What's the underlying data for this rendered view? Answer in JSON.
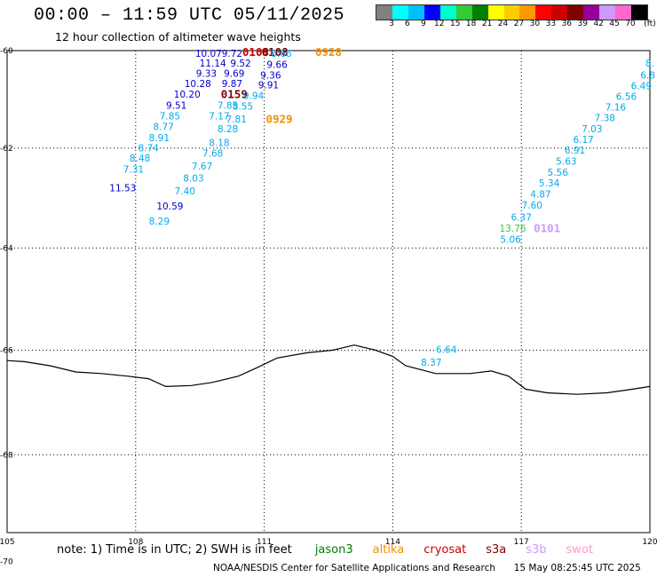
{
  "header": {
    "title": "00:00 – 11:59 UTC 05/11/2025",
    "subtitle": "12 hour collection of altimeter wave heights"
  },
  "colorbar": {
    "colors": [
      "#808080",
      "#00ffff",
      "#00bfff",
      "#0000ff",
      "#00ffcc",
      "#33cc33",
      "#008000",
      "#ffff00",
      "#ffcc00",
      "#ff9900",
      "#ff0000",
      "#cc0000",
      "#800000",
      "#990099",
      "#cc99ff",
      "#ff66cc",
      "#000000"
    ],
    "labels": [
      "3",
      "6",
      "9",
      "12",
      "15",
      "18",
      "21",
      "24",
      "27",
      "30",
      "33",
      "36",
      "39",
      "42",
      "45",
      "70"
    ],
    "unit": "(ft)"
  },
  "map": {
    "lon_range": [
      105,
      120
    ],
    "lat_range": [
      -60,
      -70
    ],
    "lon_ticks": [
      "105",
      "108",
      "111",
      "114",
      "117",
      "120"
    ],
    "lat_ticks": [
      "-60",
      "-62",
      "-64",
      "-66",
      "-68",
      "-70"
    ],
    "grid": true,
    "coastline": [
      [
        105.0,
        -66.2
      ],
      [
        105.4,
        -66.22
      ],
      [
        106.0,
        -66.3
      ],
      [
        106.6,
        -66.42
      ],
      [
        107.2,
        -66.45
      ],
      [
        107.8,
        -66.5
      ],
      [
        108.3,
        -66.55
      ],
      [
        108.7,
        -66.7
      ],
      [
        109.3,
        -66.68
      ],
      [
        109.8,
        -66.62
      ],
      [
        110.4,
        -66.5
      ],
      [
        110.8,
        -66.35
      ],
      [
        111.3,
        -66.15
      ],
      [
        112.0,
        -66.05
      ],
      [
        112.6,
        -66.0
      ],
      [
        113.1,
        -65.9
      ],
      [
        113.6,
        -66.0
      ],
      [
        114.0,
        -66.12
      ],
      [
        114.3,
        -66.3
      ],
      [
        115.0,
        -66.45
      ],
      [
        115.8,
        -66.45
      ],
      [
        116.3,
        -66.4
      ],
      [
        116.7,
        -66.5
      ],
      [
        117.1,
        -66.75
      ],
      [
        117.6,
        -66.82
      ],
      [
        118.3,
        -66.85
      ],
      [
        119.0,
        -66.82
      ],
      [
        119.6,
        -66.75
      ],
      [
        120.0,
        -66.7
      ]
    ],
    "labels": [
      {
        "t": "10.07",
        "lon": 109.7,
        "lat": -60.07,
        "c": "#0000cc"
      },
      {
        "t": "9.72",
        "lon": 110.25,
        "lat": -60.07,
        "c": "#0000cc"
      },
      {
        "t": "0108",
        "lon": 110.8,
        "lat": -60.05,
        "c": "#cc0000"
      },
      {
        "t": "0108",
        "lon": 111.25,
        "lat": -60.05,
        "c": "#800000"
      },
      {
        "t": "8.66",
        "lon": 111.4,
        "lat": -60.07,
        "c": "#00aaee"
      },
      {
        "t": "0928",
        "lon": 112.5,
        "lat": -60.05,
        "c": "#f09000"
      },
      {
        "t": "11.14",
        "lon": 109.8,
        "lat": -60.28,
        "c": "#0000cc"
      },
      {
        "t": "9.52",
        "lon": 110.45,
        "lat": -60.28,
        "c": "#0000cc"
      },
      {
        "t": "9.66",
        "lon": 111.3,
        "lat": -60.3,
        "c": "#0000cc"
      },
      {
        "t": "9.33",
        "lon": 109.65,
        "lat": -60.49,
        "c": "#0000cc"
      },
      {
        "t": "9.69",
        "lon": 110.3,
        "lat": -60.49,
        "c": "#0000cc"
      },
      {
        "t": "9.36",
        "lon": 111.15,
        "lat": -60.52,
        "c": "#0000cc"
      },
      {
        "t": "10.28",
        "lon": 109.45,
        "lat": -60.7,
        "c": "#0000cc"
      },
      {
        "t": "9.87",
        "lon": 110.25,
        "lat": -60.7,
        "c": "#0000cc"
      },
      {
        "t": "9.91",
        "lon": 111.1,
        "lat": -60.72,
        "c": "#0000cc"
      },
      {
        "t": "10.20",
        "lon": 109.2,
        "lat": -60.92,
        "c": "#0000cc"
      },
      {
        "t": "0159",
        "lon": 110.3,
        "lat": -60.92,
        "c": "#800000"
      },
      {
        "t": "9.94",
        "lon": 110.75,
        "lat": -60.94,
        "c": "#00aaee"
      },
      {
        "t": "9.51",
        "lon": 108.95,
        "lat": -61.14,
        "c": "#0000cc"
      },
      {
        "t": "7.85",
        "lon": 110.15,
        "lat": -61.14,
        "c": "#00aaee"
      },
      {
        "t": "8.55",
        "lon": 110.5,
        "lat": -61.16,
        "c": "#00aaee"
      },
      {
        "t": "7.85",
        "lon": 108.8,
        "lat": -61.36,
        "c": "#00aaee"
      },
      {
        "t": "7.17",
        "lon": 109.95,
        "lat": -61.36,
        "c": "#00aaee"
      },
      {
        "t": "7.81",
        "lon": 110.35,
        "lat": -61.42,
        "c": "#00aaee"
      },
      {
        "t": "0929",
        "lon": 111.35,
        "lat": -61.42,
        "c": "#f09000"
      },
      {
        "t": "8.77",
        "lon": 108.65,
        "lat": -61.58,
        "c": "#00aaee"
      },
      {
        "t": "8.28",
        "lon": 110.15,
        "lat": -61.62,
        "c": "#00aaee"
      },
      {
        "t": "8.91",
        "lon": 108.55,
        "lat": -61.8,
        "c": "#00aaee"
      },
      {
        "t": "8.18",
        "lon": 109.95,
        "lat": -61.9,
        "c": "#00aaee"
      },
      {
        "t": "8.74",
        "lon": 108.3,
        "lat": -62.01,
        "c": "#00aaee"
      },
      {
        "t": "7.68",
        "lon": 109.8,
        "lat": -62.12,
        "c": "#00aaee"
      },
      {
        "t": "8.48",
        "lon": 108.1,
        "lat": -62.22,
        "c": "#00aaee"
      },
      {
        "t": "7.67",
        "lon": 109.55,
        "lat": -62.38,
        "c": "#00aaee"
      },
      {
        "t": "7.31",
        "lon": 107.95,
        "lat": -62.44,
        "c": "#00aaee"
      },
      {
        "t": "8.03",
        "lon": 109.35,
        "lat": -62.62,
        "c": "#00aaee"
      },
      {
        "t": "11.53",
        "lon": 107.7,
        "lat": -62.82,
        "c": "#0000cc"
      },
      {
        "t": "7.40",
        "lon": 109.15,
        "lat": -62.88,
        "c": "#00aaee"
      },
      {
        "t": "10.59",
        "lon": 108.8,
        "lat": -63.18,
        "c": "#0000cc"
      },
      {
        "t": "8.29",
        "lon": 108.55,
        "lat": -63.48,
        "c": "#00aaee"
      },
      {
        "t": "8.",
        "lon": 120.0,
        "lat": -60.28,
        "c": "#00aaee"
      },
      {
        "t": "6.8",
        "lon": 119.95,
        "lat": -60.52,
        "c": "#00aaee"
      },
      {
        "t": "6.49",
        "lon": 119.8,
        "lat": -60.74,
        "c": "#00aaee"
      },
      {
        "t": "6.56",
        "lon": 119.45,
        "lat": -60.96,
        "c": "#00aaee"
      },
      {
        "t": "7.16",
        "lon": 119.2,
        "lat": -61.18,
        "c": "#00aaee"
      },
      {
        "t": "7.38",
        "lon": 118.95,
        "lat": -61.4,
        "c": "#00aaee"
      },
      {
        "t": "7.03",
        "lon": 118.65,
        "lat": -61.62,
        "c": "#00aaee"
      },
      {
        "t": "6.17",
        "lon": 118.45,
        "lat": -61.84,
        "c": "#00aaee"
      },
      {
        "t": "6.91",
        "lon": 118.25,
        "lat": -62.06,
        "c": "#00aaee"
      },
      {
        "t": "5.63",
        "lon": 118.05,
        "lat": -62.28,
        "c": "#00aaee"
      },
      {
        "t": "5.56",
        "lon": 117.85,
        "lat": -62.5,
        "c": "#00aaee"
      },
      {
        "t": "5.34",
        "lon": 117.65,
        "lat": -62.72,
        "c": "#00aaee"
      },
      {
        "t": "4.87",
        "lon": 117.45,
        "lat": -62.94,
        "c": "#00aaee"
      },
      {
        "t": "7.60",
        "lon": 117.25,
        "lat": -63.16,
        "c": "#00aaee"
      },
      {
        "t": "6.37",
        "lon": 117.0,
        "lat": -63.4,
        "c": "#00aaee"
      },
      {
        "t": "13.76",
        "lon": 116.8,
        "lat": -63.62,
        "c": "#33cc33"
      },
      {
        "t": "0101",
        "lon": 117.6,
        "lat": -63.62,
        "c": "#cc99ff"
      },
      {
        "t": "5.06",
        "lon": 116.75,
        "lat": -63.84,
        "c": "#00aaee"
      },
      {
        "t": "6.64",
        "lon": 115.25,
        "lat": -66.0,
        "c": "#00aaee"
      },
      {
        "t": "8.37",
        "lon": 114.9,
        "lat": -66.25,
        "c": "#00aaee"
      }
    ]
  },
  "note": {
    "text": "note:  1) Time is in UTC; 2) SWH is in feet",
    "legend": [
      {
        "name": "jason3",
        "color": "#008000"
      },
      {
        "name": "altika",
        "color": "#f09000"
      },
      {
        "name": "cryosat",
        "color": "#cc0000"
      },
      {
        "name": "s3a",
        "color": "#800000"
      },
      {
        "name": "s3b",
        "color": "#cc99ff"
      },
      {
        "name": "swot",
        "color": "#ff99cc"
      }
    ]
  },
  "footer": {
    "credit": "NOAA/NESDIS Center for Satellite Applications and Research",
    "timestamp": "15 May 08:25:45 UTC 2025"
  }
}
